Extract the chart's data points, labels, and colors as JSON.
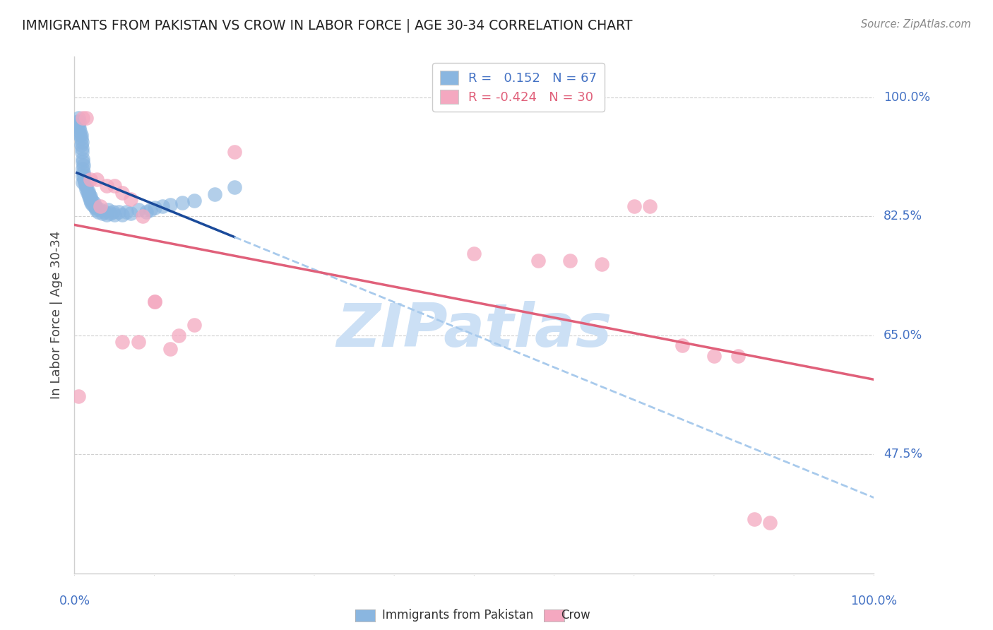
{
  "title": "IMMIGRANTS FROM PAKISTAN VS CROW IN LABOR FORCE | AGE 30-34 CORRELATION CHART",
  "source": "Source: ZipAtlas.com",
  "ylabel": "In Labor Force | Age 30-34",
  "ytick_labels": [
    "100.0%",
    "82.5%",
    "65.0%",
    "47.5%"
  ],
  "ytick_vals": [
    1.0,
    0.825,
    0.65,
    0.475
  ],
  "xlim": [
    0.0,
    1.0
  ],
  "ylim": [
    0.3,
    1.06
  ],
  "blue_scatter_color": "#8ab6e0",
  "pink_scatter_color": "#f4a8c0",
  "blue_line_color": "#1a4a9a",
  "pink_line_color": "#e0607a",
  "dashed_color": "#a8caec",
  "watermark_color": "#cce0f5",
  "tick_label_color": "#4472c4",
  "grid_color": "#d0d0d0",
  "pakistan_x": [
    0.003,
    0.004,
    0.005,
    0.005,
    0.006,
    0.006,
    0.007,
    0.007,
    0.008,
    0.008,
    0.008,
    0.009,
    0.009,
    0.009,
    0.01,
    0.01,
    0.01,
    0.01,
    0.01,
    0.011,
    0.011,
    0.012,
    0.012,
    0.013,
    0.013,
    0.014,
    0.015,
    0.015,
    0.015,
    0.016,
    0.017,
    0.018,
    0.018,
    0.019,
    0.02,
    0.02,
    0.021,
    0.022,
    0.023,
    0.024,
    0.025,
    0.026,
    0.027,
    0.028,
    0.03,
    0.032,
    0.035,
    0.038,
    0.04,
    0.042,
    0.045,
    0.048,
    0.05,
    0.055,
    0.06,
    0.065,
    0.07,
    0.08,
    0.09,
    0.095,
    0.1,
    0.11,
    0.12,
    0.135,
    0.15,
    0.175,
    0.2
  ],
  "pakistan_y": [
    0.96,
    0.965,
    0.97,
    0.96,
    0.955,
    0.965,
    0.95,
    0.945,
    0.945,
    0.94,
    0.93,
    0.925,
    0.92,
    0.935,
    0.91,
    0.905,
    0.895,
    0.885,
    0.875,
    0.9,
    0.89,
    0.88,
    0.885,
    0.875,
    0.88,
    0.87,
    0.875,
    0.865,
    0.87,
    0.86,
    0.862,
    0.855,
    0.858,
    0.852,
    0.848,
    0.855,
    0.845,
    0.848,
    0.842,
    0.845,
    0.84,
    0.838,
    0.835,
    0.838,
    0.832,
    0.835,
    0.83,
    0.832,
    0.828,
    0.835,
    0.83,
    0.832,
    0.828,
    0.832,
    0.828,
    0.832,
    0.83,
    0.835,
    0.832,
    0.835,
    0.838,
    0.84,
    0.842,
    0.845,
    0.848,
    0.858,
    0.868
  ],
  "crow_x": [
    0.005,
    0.01,
    0.015,
    0.02,
    0.028,
    0.032,
    0.04,
    0.05,
    0.06,
    0.07,
    0.085,
    0.1,
    0.12,
    0.15,
    0.2,
    0.06,
    0.08,
    0.1,
    0.13,
    0.5,
    0.58,
    0.62,
    0.66,
    0.7,
    0.72,
    0.76,
    0.8,
    0.83,
    0.85,
    0.87
  ],
  "crow_y": [
    0.56,
    0.97,
    0.97,
    0.88,
    0.88,
    0.84,
    0.87,
    0.87,
    0.86,
    0.85,
    0.825,
    0.7,
    0.63,
    0.665,
    0.92,
    0.64,
    0.64,
    0.7,
    0.65,
    0.77,
    0.76,
    0.76,
    0.755,
    0.84,
    0.84,
    0.635,
    0.62,
    0.62,
    0.38,
    0.375
  ]
}
